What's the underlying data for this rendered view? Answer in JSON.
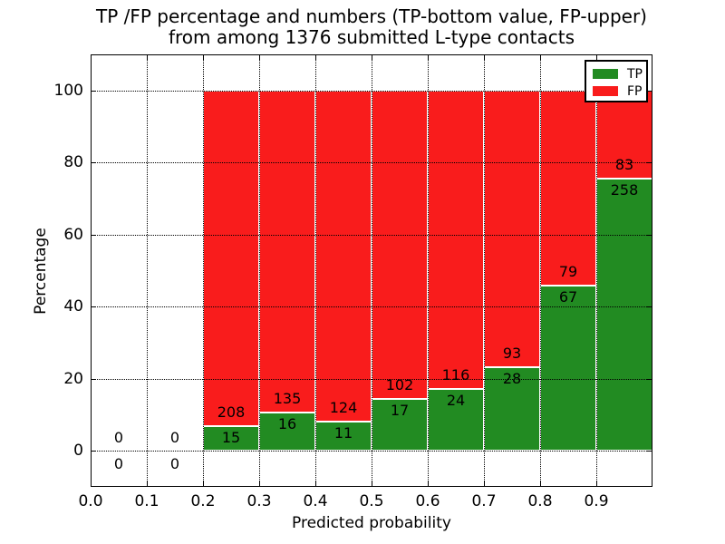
{
  "title": {
    "line1": "TP /FP percentage and numbers (TP-bottom value, FP-upper)",
    "line2": "from among 1376 submitted L-type contacts"
  },
  "axes": {
    "xlabel": "Predicted probability",
    "ylabel": "Percentage",
    "x_tick_values": [
      0.0,
      0.1,
      0.2,
      0.3,
      0.4,
      0.5,
      0.6,
      0.7,
      0.8,
      0.9
    ],
    "x_tick_labels": [
      "0.0",
      "0.1",
      "0.2",
      "0.3",
      "0.4",
      "0.5",
      "0.6",
      "0.7",
      "0.8",
      "0.9"
    ],
    "y_tick_values": [
      0,
      20,
      40,
      60,
      80,
      100
    ],
    "y_tick_labels": [
      "0",
      "20",
      "40",
      "60",
      "80",
      "100"
    ],
    "xlim": [
      0.0,
      1.0
    ],
    "ylim": [
      -10,
      110
    ],
    "grid": true
  },
  "legend": {
    "position": "upper-right",
    "items": [
      {
        "label": "TP",
        "color": "#228b22"
      },
      {
        "label": "FP",
        "color": "#f91c1c"
      }
    ]
  },
  "chart_data": {
    "type": "bar",
    "stacked": true,
    "normalized_to_percent": true,
    "bin_width": 0.1,
    "total_contacts": 1376,
    "series_names": [
      "TP",
      "FP"
    ],
    "bins": [
      {
        "x_start": 0.0,
        "tp_count": 0,
        "fp_count": 0
      },
      {
        "x_start": 0.1,
        "tp_count": 0,
        "fp_count": 0
      },
      {
        "x_start": 0.2,
        "tp_count": 15,
        "fp_count": 208
      },
      {
        "x_start": 0.3,
        "tp_count": 16,
        "fp_count": 135
      },
      {
        "x_start": 0.4,
        "tp_count": 11,
        "fp_count": 124
      },
      {
        "x_start": 0.5,
        "tp_count": 17,
        "fp_count": 102
      },
      {
        "x_start": 0.6,
        "tp_count": 24,
        "fp_count": 116
      },
      {
        "x_start": 0.7,
        "tp_count": 28,
        "fp_count": 93
      },
      {
        "x_start": 0.8,
        "tp_count": 67,
        "fp_count": 79
      },
      {
        "x_start": 0.9,
        "tp_count": 258,
        "fp_count": 83
      }
    ]
  }
}
